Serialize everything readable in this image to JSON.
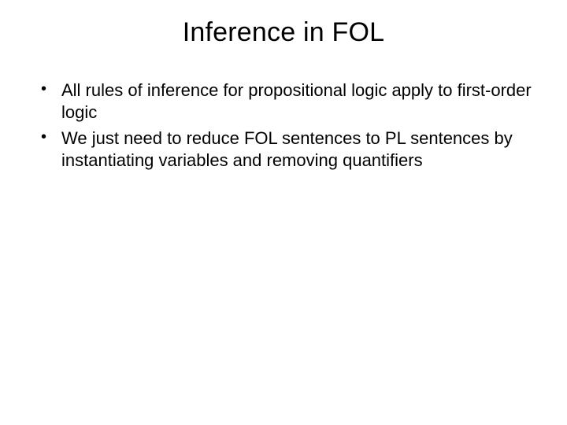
{
  "slide": {
    "title": "Inference in FOL",
    "bullets": [
      "All rules of inference for propositional logic apply to first-order logic",
      "We just need to reduce FOL sentences to PL sentences by instantiating variables and removing quantifiers"
    ]
  },
  "colors": {
    "background": "#ffffff",
    "text": "#000000"
  },
  "typography": {
    "title_fontsize": 34,
    "body_fontsize": 22,
    "font_family": "Arial"
  }
}
